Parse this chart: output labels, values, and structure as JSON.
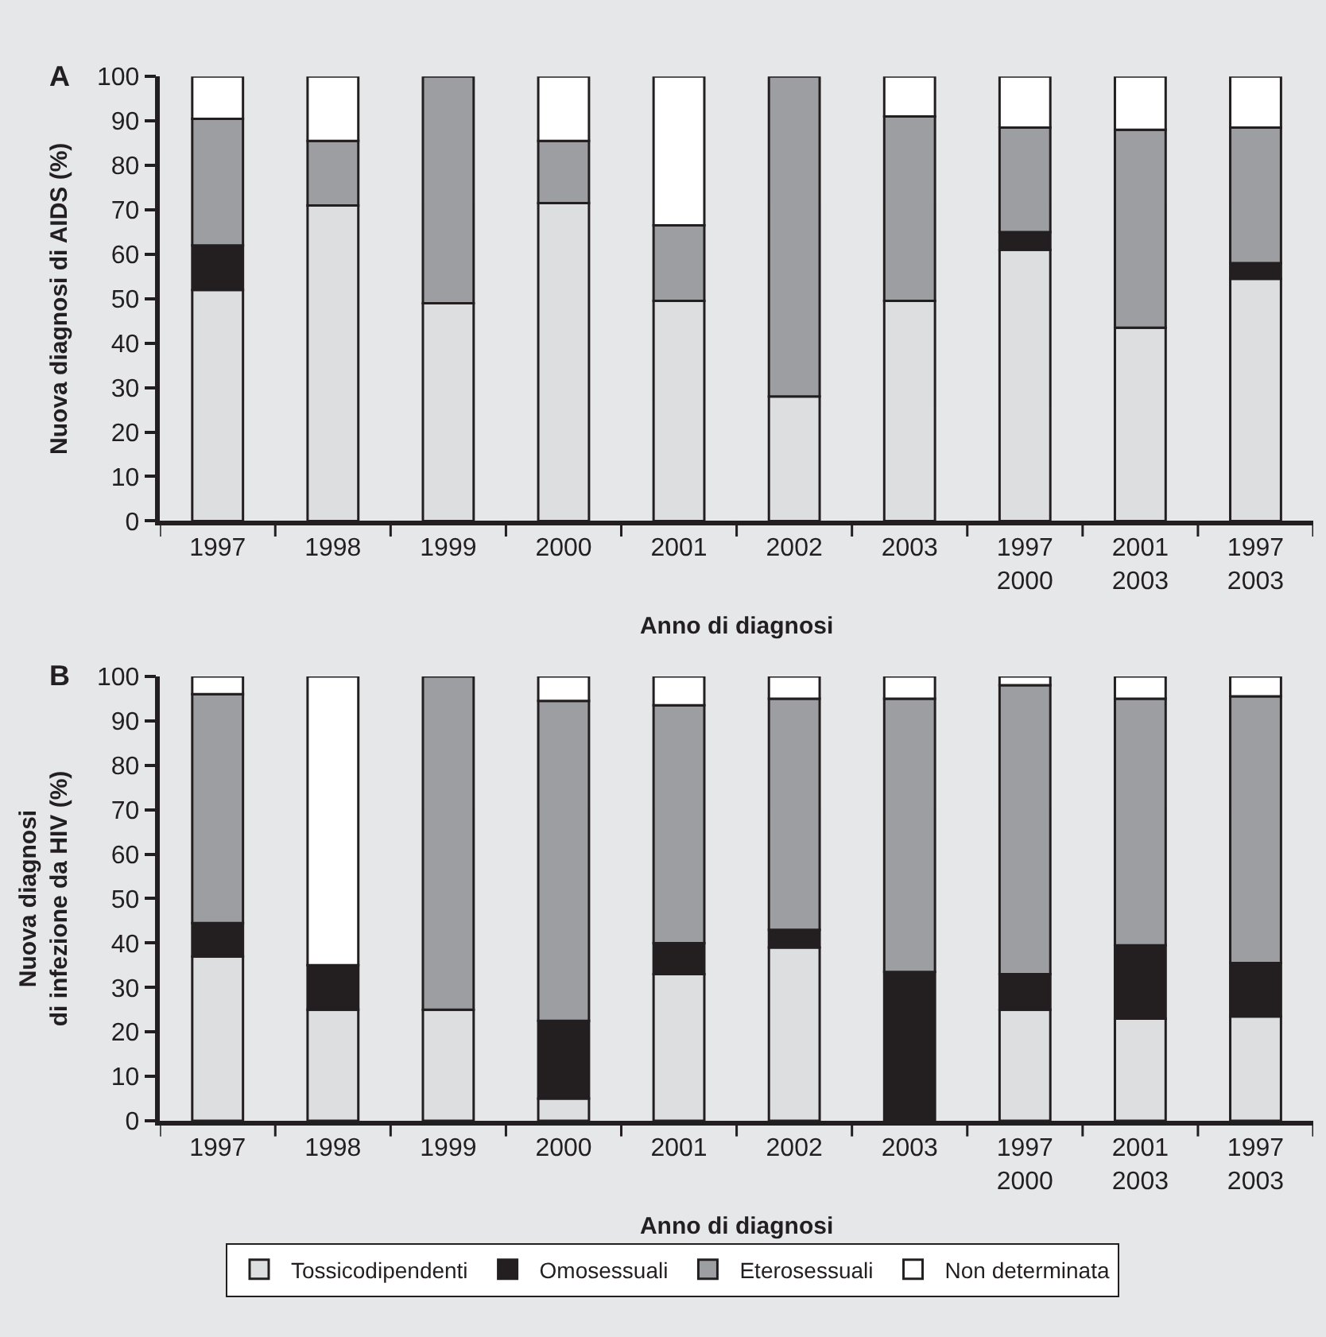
{
  "chart_data": [
    {
      "type": "bar",
      "stacked": true,
      "title": "A",
      "xlabel": "Anno di diagnosi",
      "ylabel": "Nuova diagnosi di AIDS (%)",
      "categories": [
        "1997",
        "1998",
        "1999",
        "2000",
        "2001",
        "2002",
        "2003",
        "1997\n2000",
        "2001\n2003",
        "1997\n2003"
      ],
      "ylim": [
        0,
        100
      ],
      "yticks": [
        0,
        10,
        20,
        30,
        40,
        50,
        60,
        70,
        80,
        90,
        100
      ],
      "grid": false,
      "legend": "bottom",
      "series": [
        {
          "name": "Tossicodipendenti",
          "color": "#dddee0",
          "values": [
            52,
            71,
            49,
            71.5,
            49.5,
            28,
            49.5,
            61,
            43.5,
            54.5
          ]
        },
        {
          "name": "Omosessuali",
          "color": "#231f20",
          "values": [
            10,
            0,
            0,
            0,
            0,
            0,
            0,
            4,
            0,
            3.5
          ]
        },
        {
          "name": "Eterosessuali",
          "color": "#9d9ea2",
          "values": [
            28.5,
            14.5,
            51,
            14,
            17,
            72,
            41.5,
            23.5,
            44.5,
            30.5
          ]
        },
        {
          "name": "Non determinata",
          "color": "#ffffff",
          "values": [
            9.5,
            14.5,
            0,
            14.5,
            33.5,
            0,
            9,
            11.5,
            12,
            11.5
          ]
        }
      ]
    },
    {
      "type": "bar",
      "stacked": true,
      "title": "B",
      "xlabel": "Anno di diagnosi",
      "ylabel": "Nuova diagnosi\ndi infezione da HIV (%)",
      "categories": [
        "1997",
        "1998",
        "1999",
        "2000",
        "2001",
        "2002",
        "2003",
        "1997\n2000",
        "2001\n2003",
        "1997\n2003"
      ],
      "ylim": [
        0,
        100
      ],
      "yticks": [
        0,
        10,
        20,
        30,
        40,
        50,
        60,
        70,
        80,
        90,
        100
      ],
      "grid": false,
      "series": [
        {
          "color": "#dddee0",
          "values": [
            37,
            25,
            25,
            5,
            33,
            39,
            0,
            25,
            23,
            23.5
          ]
        },
        {
          "color": "#231f20",
          "values": [
            7.5,
            10,
            0,
            17.5,
            7,
            4,
            33.5,
            8,
            16.5,
            12
          ]
        },
        {
          "color": "#9d9ea2",
          "values": [
            51.5,
            0,
            75,
            72,
            53.5,
            52,
            61.5,
            65,
            55.5,
            60
          ]
        },
        {
          "color": "#ffffff",
          "values": [
            4,
            65,
            0,
            5.5,
            6.5,
            5,
            5,
            2,
            5,
            4.5
          ]
        }
      ]
    }
  ]
}
